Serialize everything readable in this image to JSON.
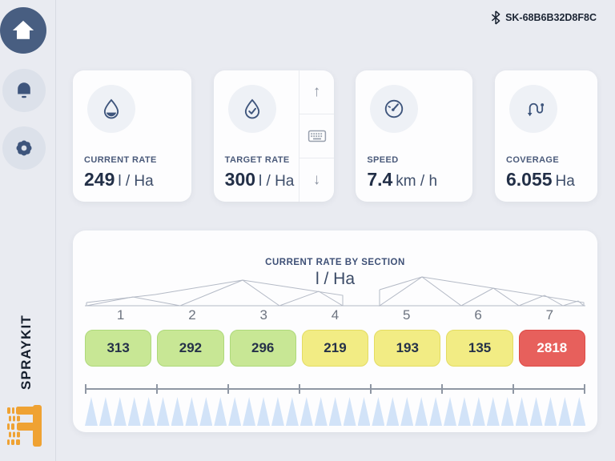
{
  "header": {
    "device_id": "SK-68B6B32D8F8C",
    "bluetooth_icon": "bluetooth-icon"
  },
  "sidebar": {
    "brand": "SPRAYKIT",
    "items": [
      {
        "name": "home",
        "icon": "home-icon"
      },
      {
        "name": "alerts",
        "icon": "bell-icon"
      },
      {
        "name": "settings",
        "icon": "gear-icon"
      }
    ],
    "logo_icon": "pixel-f-logo",
    "logo_color": "#efa233"
  },
  "metrics": [
    {
      "label": "CURRENT RATE",
      "value": "249",
      "unit": "l / Ha",
      "icon": "droplet-icon"
    },
    {
      "label": "TARGET RATE",
      "value": "300",
      "unit": "l / Ha",
      "icon": "droplet-check-icon",
      "stepper": {
        "up": "↑",
        "keyboard_icon": "keyboard-icon",
        "down": "↓"
      }
    },
    {
      "label": "SPEED",
      "value": "7.4",
      "unit": "km / h",
      "icon": "speedometer-icon"
    },
    {
      "label": "COVERAGE",
      "value": "6.055",
      "unit": "Ha",
      "icon": "route-icon"
    }
  ],
  "section_panel": {
    "title": "CURRENT RATE BY SECTION",
    "unit": "l / Ha",
    "sections": [
      {
        "number": "1",
        "value": "313",
        "status": "good"
      },
      {
        "number": "2",
        "value": "292",
        "status": "good"
      },
      {
        "number": "3",
        "value": "296",
        "status": "good"
      },
      {
        "number": "4",
        "value": "219",
        "status": "warning"
      },
      {
        "number": "5",
        "value": "193",
        "status": "warning"
      },
      {
        "number": "6",
        "value": "135",
        "status": "warning"
      },
      {
        "number": "7",
        "value": "2818",
        "status": "alert"
      }
    ],
    "nozzle_count": 35
  },
  "colors": {
    "background": "#e9ebf1",
    "card": "#fdfdfe",
    "accent_navy": "#485e81",
    "status_good": "#c8e795",
    "status_warning": "#f2ec84",
    "status_alert": "#e7605c",
    "nozzle_blue": "#d2e3f8",
    "logo_orange": "#efa233"
  }
}
